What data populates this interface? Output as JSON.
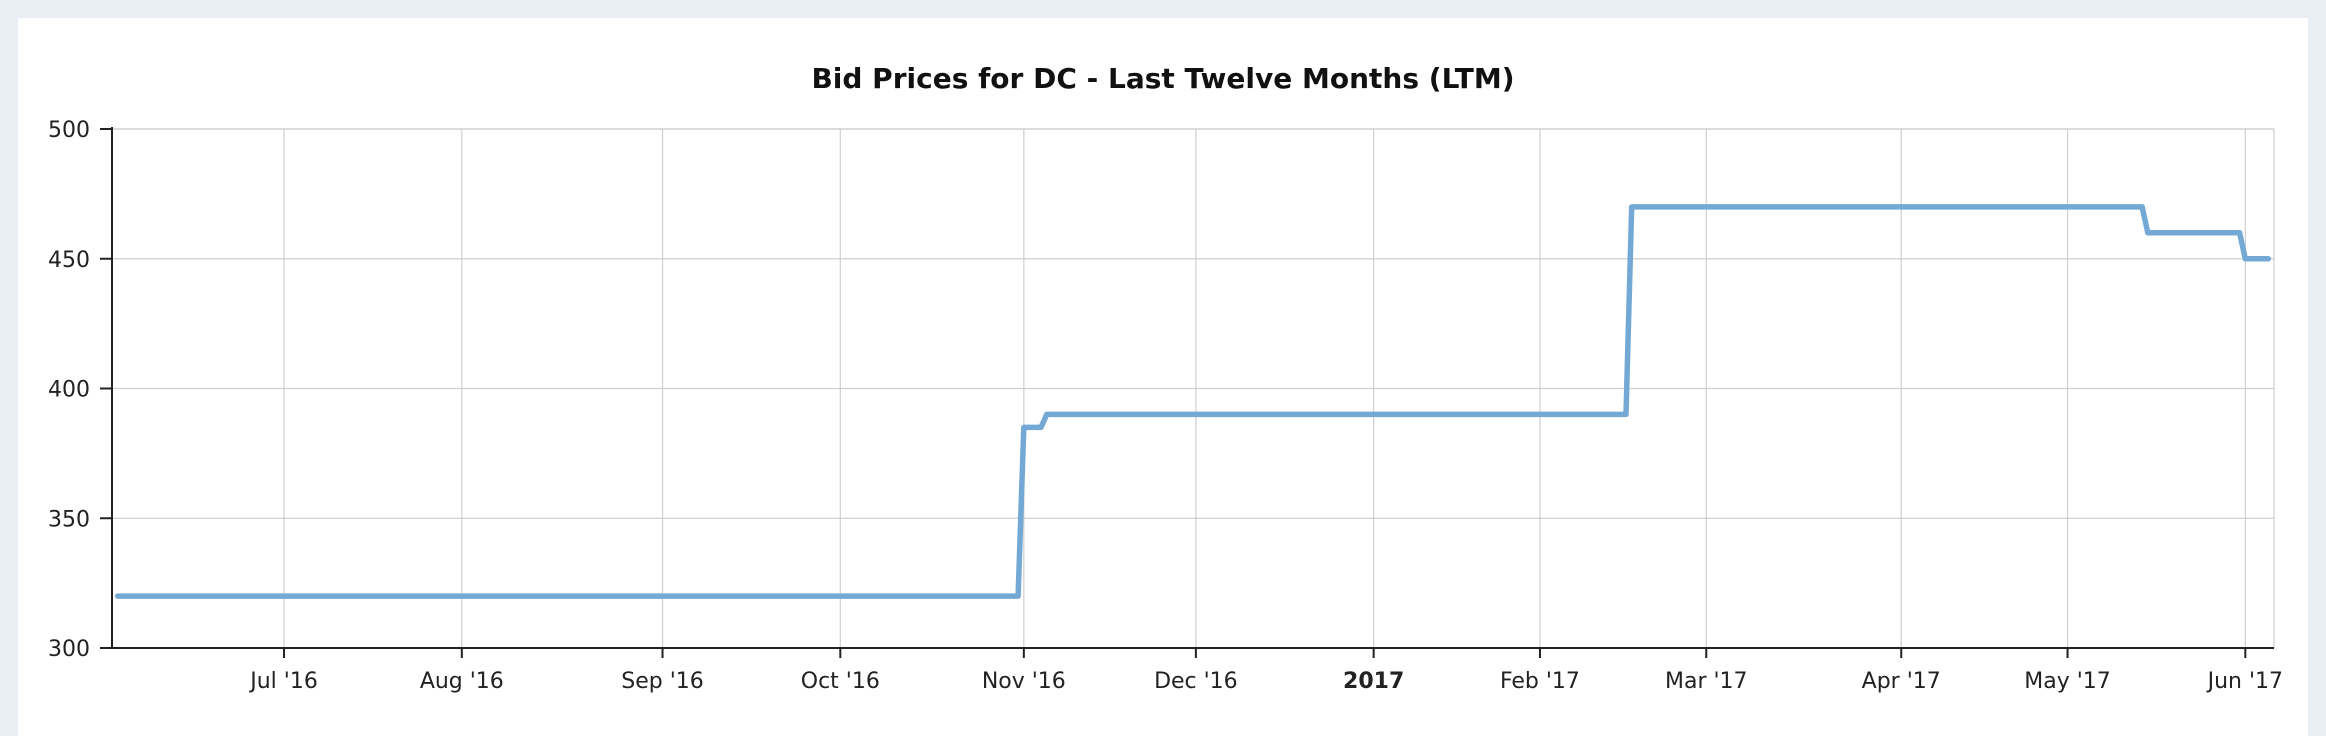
{
  "chart_data": {
    "type": "line",
    "title": "Bid Prices for DC - Last Twelve Months (LTM)",
    "xlabel": "",
    "ylabel": "",
    "x_range": [
      "2016-06-01",
      "2017-06-13"
    ],
    "ylim": [
      300,
      500
    ],
    "y_ticks": [
      300,
      350,
      400,
      450,
      500
    ],
    "x_ticks": [
      {
        "date": "2016-07-01",
        "label": "Jul '16",
        "bold": false
      },
      {
        "date": "2016-08-01",
        "label": "Aug '16",
        "bold": false
      },
      {
        "date": "2016-09-05",
        "label": "Sep '16",
        "bold": false
      },
      {
        "date": "2016-10-06",
        "label": "Oct '16",
        "bold": false
      },
      {
        "date": "2016-11-07",
        "label": "Nov '16",
        "bold": false
      },
      {
        "date": "2016-12-07",
        "label": "Dec '16",
        "bold": false
      },
      {
        "date": "2017-01-07",
        "label": "2017",
        "bold": true
      },
      {
        "date": "2017-02-05",
        "label": "Feb '17",
        "bold": false
      },
      {
        "date": "2017-03-06",
        "label": "Mar '17",
        "bold": false
      },
      {
        "date": "2017-04-09",
        "label": "Apr '17",
        "bold": false
      },
      {
        "date": "2017-05-08",
        "label": "May '17",
        "bold": false
      },
      {
        "date": "2017-06-08",
        "label": "Jun '17",
        "bold": false
      }
    ],
    "grid": true,
    "legend": "none",
    "series": [
      {
        "color": "#74a9d6",
        "points": [
          {
            "x": "2016-06-02",
            "y": 320
          },
          {
            "x": "2016-11-06",
            "y": 320
          },
          {
            "x": "2016-11-07",
            "y": 385
          },
          {
            "x": "2016-11-10",
            "y": 385
          },
          {
            "x": "2016-11-11",
            "y": 390
          },
          {
            "x": "2017-02-20",
            "y": 390
          },
          {
            "x": "2017-02-21",
            "y": 470
          },
          {
            "x": "2017-05-21",
            "y": 470
          },
          {
            "x": "2017-05-22",
            "y": 460
          },
          {
            "x": "2017-06-07",
            "y": 460
          },
          {
            "x": "2017-06-08",
            "y": 450
          },
          {
            "x": "2017-06-12",
            "y": 450
          }
        ]
      }
    ]
  }
}
